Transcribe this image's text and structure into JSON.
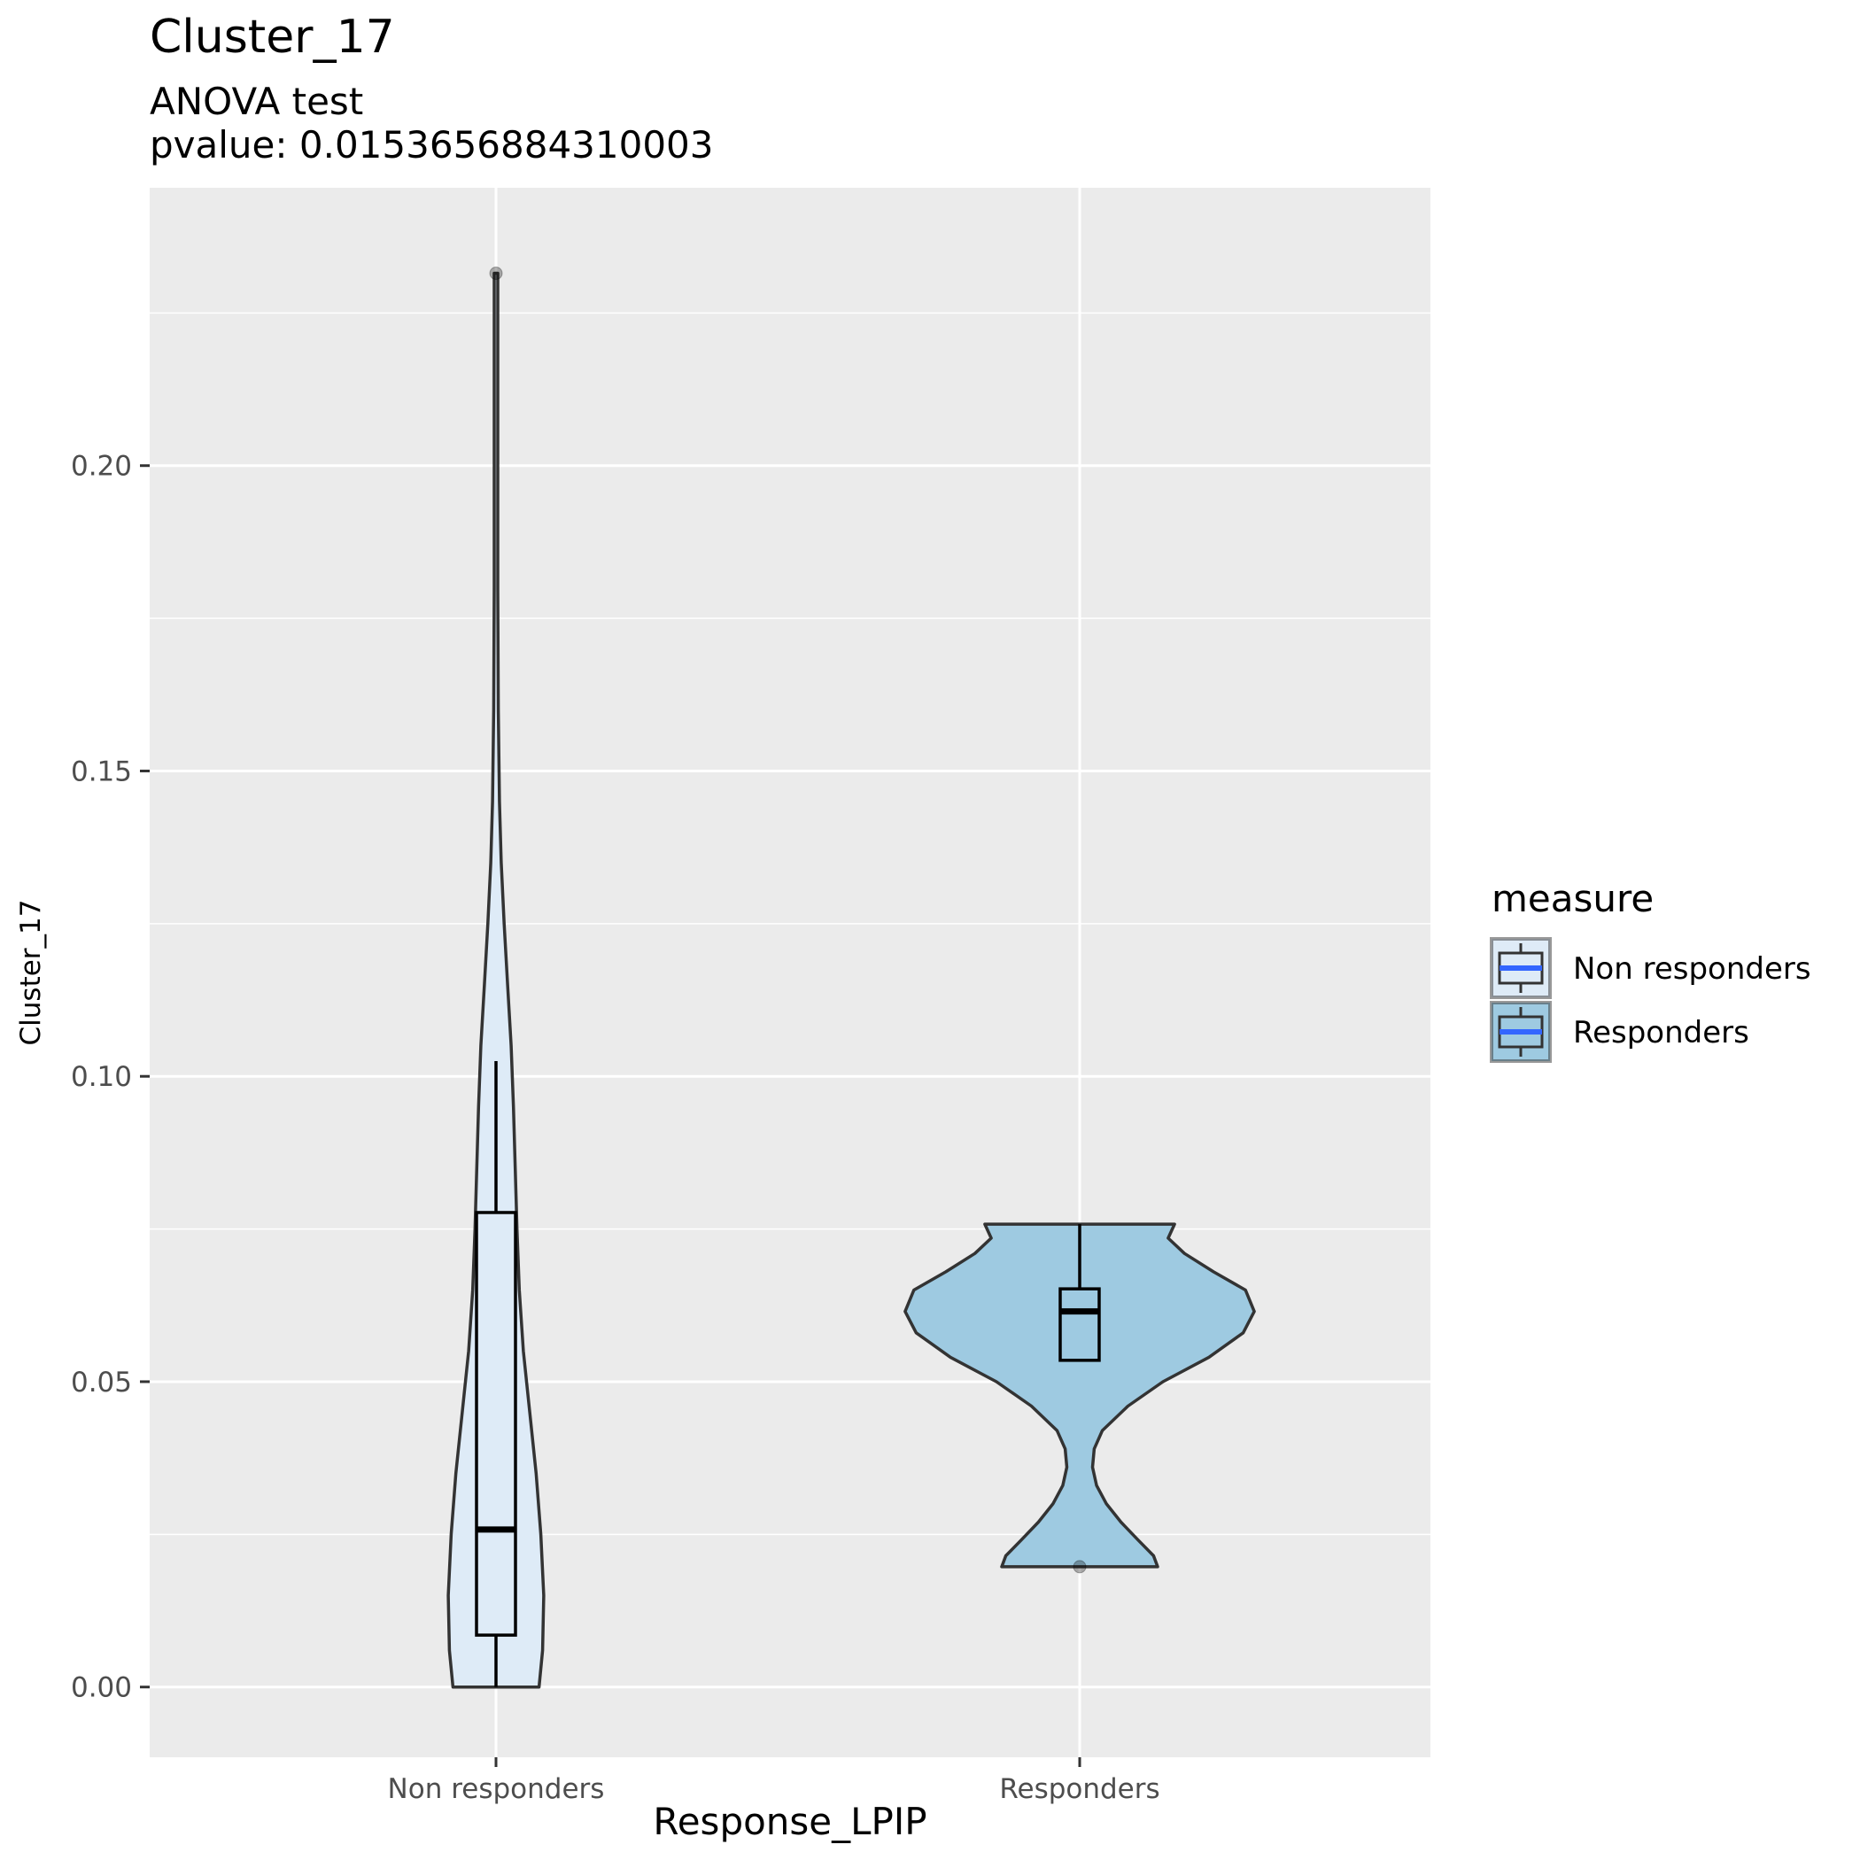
{
  "chart_data": {
    "type": "violin",
    "title": "Cluster_17",
    "subtitle_lines": [
      "ANOVA test",
      "pvalue: 0.0153656884310003"
    ],
    "xlabel": "Response_LPIP",
    "ylabel": "Cluster_17",
    "categories": [
      "Non responders",
      "Responders"
    ],
    "ylim": [
      -0.0115,
      0.2455
    ],
    "y_ticks": [
      0.0,
      0.05,
      0.1,
      0.15,
      0.2
    ],
    "y_tick_labels": [
      "0.00",
      "0.05",
      "0.10",
      "0.15",
      "0.20"
    ],
    "grid": true,
    "legend": {
      "title": "measure",
      "position": "right",
      "entries": [
        "Non responders",
        "Responders"
      ]
    },
    "series": [
      {
        "category": "Non responders",
        "fill": "#deebf7",
        "box": {
          "whisker_low": 0.0,
          "q1": 0.0085,
          "median": 0.0258,
          "q3": 0.0777,
          "whisker_high": 0.1025
        },
        "outliers": [
          0.2315
        ],
        "violin_range": [
          0.0,
          0.2315
        ],
        "density_profile": [
          [
            0.0,
            0.074
          ],
          [
            0.006,
            0.08
          ],
          [
            0.015,
            0.082
          ],
          [
            0.025,
            0.077
          ],
          [
            0.035,
            0.069
          ],
          [
            0.045,
            0.058
          ],
          [
            0.055,
            0.047
          ],
          [
            0.065,
            0.04
          ],
          [
            0.075,
            0.036
          ],
          [
            0.085,
            0.033
          ],
          [
            0.095,
            0.03
          ],
          [
            0.105,
            0.026
          ],
          [
            0.115,
            0.02
          ],
          [
            0.125,
            0.014
          ],
          [
            0.135,
            0.009
          ],
          [
            0.145,
            0.006
          ],
          [
            0.16,
            0.004
          ],
          [
            0.18,
            0.003
          ],
          [
            0.2,
            0.003
          ],
          [
            0.22,
            0.003
          ],
          [
            0.2315,
            0.003
          ]
        ]
      },
      {
        "category": "Responders",
        "fill": "#9ecae1",
        "box": {
          "whisker_low": 0.0535,
          "q1": 0.0535,
          "median": 0.0615,
          "q3": 0.0652,
          "whisker_high": 0.0758
        },
        "outliers": [
          0.0197
        ],
        "violin_range": [
          0.0197,
          0.0758
        ],
        "density_profile": [
          [
            0.0197,
            0.134
          ],
          [
            0.0215,
            0.127
          ],
          [
            0.024,
            0.101
          ],
          [
            0.027,
            0.071
          ],
          [
            0.03,
            0.046
          ],
          [
            0.033,
            0.029
          ],
          [
            0.036,
            0.022
          ],
          [
            0.039,
            0.025
          ],
          [
            0.042,
            0.039
          ],
          [
            0.046,
            0.083
          ],
          [
            0.05,
            0.143
          ],
          [
            0.054,
            0.222
          ],
          [
            0.058,
            0.281
          ],
          [
            0.0615,
            0.3
          ],
          [
            0.065,
            0.285
          ],
          [
            0.068,
            0.23
          ],
          [
            0.071,
            0.18
          ],
          [
            0.0735,
            0.152
          ],
          [
            0.0758,
            0.163
          ]
        ]
      }
    ]
  }
}
